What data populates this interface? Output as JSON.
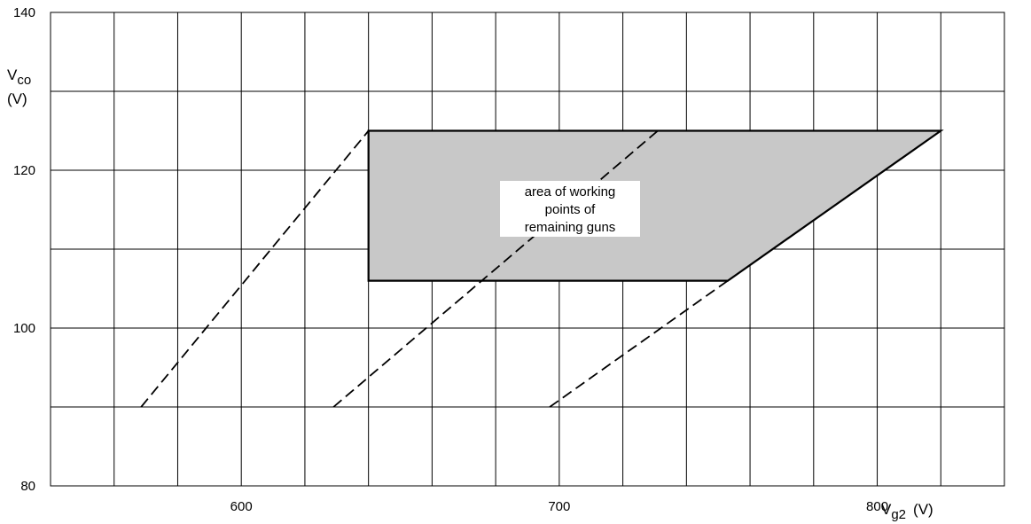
{
  "chart_data": {
    "type": "line",
    "title": "",
    "xlabel": {
      "main": "V",
      "sub": "g2",
      "unit": "(V)"
    },
    "ylabel": {
      "main": "V",
      "sub": "co",
      "unit": "(V)"
    },
    "xlim": [
      540,
      840
    ],
    "ylim": [
      80,
      140
    ],
    "xticks": [
      600,
      700,
      800
    ],
    "yticks": [
      80,
      100,
      120,
      140
    ],
    "x_grid_step": 20,
    "y_grid_step": 10,
    "grid": true,
    "colors": {
      "line": "#000000",
      "area_fill": "#c8c8c8",
      "grid": "#000000"
    },
    "area": {
      "label_lines": [
        "area of working",
        "points of",
        "remaining guns"
      ],
      "points": [
        [
          640,
          125
        ],
        [
          820,
          125
        ],
        [
          753,
          106
        ],
        [
          640,
          106
        ]
      ]
    },
    "series": [
      {
        "style": "dashed",
        "points": [
          [
            568.5,
            90
          ],
          [
            640,
            125
          ]
        ]
      },
      {
        "style": "dashed",
        "points": [
          [
            629,
            90
          ],
          [
            731,
            125
          ]
        ]
      },
      {
        "style": "dashed",
        "points": [
          [
            697,
            90
          ],
          [
            753,
            106
          ]
        ]
      }
    ]
  }
}
